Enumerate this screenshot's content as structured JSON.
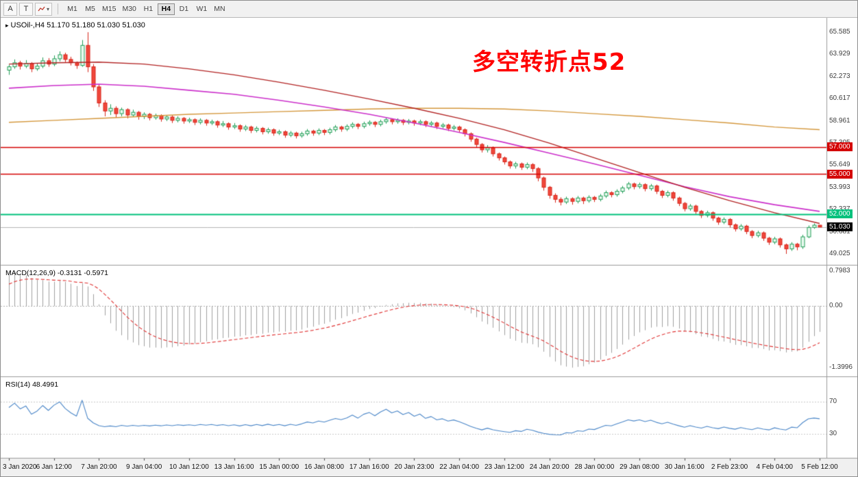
{
  "toolbar": {
    "tool_buttons": [
      {
        "label": "A"
      },
      {
        "label": "T"
      }
    ],
    "dropdown_arrow": "▾",
    "timeframes": [
      "M1",
      "M5",
      "M15",
      "M30",
      "H1",
      "H4",
      "D1",
      "W1",
      "MN"
    ],
    "active_timeframe": "H4"
  },
  "chart": {
    "type": "candlestick",
    "title_marker": "▸",
    "title": "USOil-,H4 51.170 51.180 51.030 51.030",
    "annotation": "多空转折点52",
    "y_ticks": [
      65.585,
      63.929,
      62.273,
      60.617,
      58.961,
      57.305,
      55.649,
      53.993,
      52.337,
      50.681,
      49.025
    ],
    "ylim": [
      48.31,
      66.66
    ],
    "hlines": [
      {
        "value": 57.0,
        "label": "57.000",
        "color_key": "hline_red",
        "width": 1.6
      },
      {
        "value": 55.0,
        "label": "55.000",
        "color_key": "hline_red",
        "width": 1.6
      },
      {
        "value": 52.0,
        "label": "52.000",
        "color_key": "hline_green",
        "width": 2.2
      }
    ],
    "current_price": {
      "value": 51.03,
      "label": "51.030"
    },
    "moving_averages": [
      {
        "name": "ma-slow",
        "color_key": "ma_slow",
        "step": 8,
        "width": 1.4,
        "values": [
          58.85,
          59.0,
          59.15,
          59.3,
          59.45,
          59.55,
          59.65,
          59.75,
          59.85,
          59.9,
          59.9,
          59.85,
          59.7,
          59.5,
          59.3,
          59.05,
          58.8,
          58.5,
          58.3
        ]
      },
      {
        "name": "ma-medium",
        "color_key": "ma_mid",
        "step": 8,
        "width": 1.6,
        "values": [
          61.4,
          61.6,
          61.7,
          61.55,
          61.25,
          60.95,
          60.5,
          60.0,
          59.45,
          58.8,
          58.1,
          57.35,
          56.55,
          55.75,
          54.9,
          54.05,
          53.3,
          52.7,
          52.2
        ]
      },
      {
        "name": "ma-fast",
        "color_key": "ma_fast",
        "step": 8,
        "width": 1.3,
        "values": [
          63.2,
          63.3,
          63.35,
          63.2,
          62.85,
          62.4,
          61.85,
          61.25,
          60.6,
          59.9,
          59.15,
          58.3,
          57.3,
          56.2,
          55.1,
          54.0,
          53.0,
          52.1,
          51.3
        ]
      }
    ],
    "candles": [
      [
        62.75,
        63.15,
        62.4,
        63.0
      ],
      [
        63.0,
        63.55,
        62.85,
        63.3
      ],
      [
        63.3,
        63.45,
        62.8,
        63.05
      ],
      [
        63.05,
        63.5,
        62.9,
        63.25
      ],
      [
        63.25,
        63.35,
        62.6,
        62.85
      ],
      [
        62.85,
        63.25,
        62.7,
        63.05
      ],
      [
        63.05,
        63.7,
        62.9,
        63.45
      ],
      [
        63.45,
        63.65,
        63.0,
        63.2
      ],
      [
        63.2,
        63.85,
        63.05,
        63.6
      ],
      [
        63.6,
        64.15,
        63.4,
        63.9
      ],
      [
        63.9,
        64.05,
        63.35,
        63.55
      ],
      [
        63.55,
        63.75,
        63.1,
        63.3
      ],
      [
        63.3,
        63.4,
        62.85,
        63.1
      ],
      [
        63.1,
        65.0,
        63.0,
        64.6
      ],
      [
        64.6,
        65.585,
        62.6,
        63.0
      ],
      [
        63.0,
        63.2,
        61.2,
        61.5
      ],
      [
        61.5,
        61.7,
        60.0,
        60.3
      ],
      [
        60.3,
        60.5,
        59.3,
        59.7
      ],
      [
        59.7,
        60.2,
        59.4,
        59.9
      ],
      [
        59.9,
        60.05,
        59.2,
        59.5
      ],
      [
        59.5,
        59.95,
        59.3,
        59.8
      ],
      [
        59.8,
        59.9,
        59.15,
        59.4
      ],
      [
        59.4,
        59.8,
        59.25,
        59.6
      ],
      [
        59.6,
        59.7,
        59.05,
        59.3
      ],
      [
        59.3,
        59.6,
        59.1,
        59.45
      ],
      [
        59.45,
        59.55,
        59.0,
        59.2
      ],
      [
        59.2,
        59.5,
        59.05,
        59.35
      ],
      [
        59.35,
        59.45,
        58.9,
        59.1
      ],
      [
        59.1,
        59.4,
        58.95,
        59.25
      ],
      [
        59.25,
        59.35,
        58.8,
        59.0
      ],
      [
        59.0,
        59.3,
        58.85,
        59.15
      ],
      [
        59.15,
        59.25,
        58.75,
        58.95
      ],
      [
        58.95,
        59.2,
        58.8,
        59.05
      ],
      [
        59.05,
        59.15,
        58.65,
        58.85
      ],
      [
        58.85,
        59.15,
        58.7,
        59.0
      ],
      [
        59.0,
        59.1,
        58.6,
        58.8
      ],
      [
        58.8,
        59.05,
        58.65,
        58.9
      ],
      [
        58.9,
        59.0,
        58.45,
        58.65
      ],
      [
        58.65,
        58.95,
        58.5,
        58.75
      ],
      [
        58.75,
        58.85,
        58.3,
        58.5
      ],
      [
        58.5,
        58.8,
        58.35,
        58.6
      ],
      [
        58.6,
        58.7,
        58.15,
        58.35
      ],
      [
        58.35,
        58.65,
        58.2,
        58.5
      ],
      [
        58.5,
        58.6,
        58.05,
        58.25
      ],
      [
        58.25,
        58.55,
        58.1,
        58.4
      ],
      [
        58.4,
        58.5,
        57.95,
        58.15
      ],
      [
        58.15,
        58.45,
        58.0,
        58.3
      ],
      [
        58.3,
        58.4,
        57.85,
        58.05
      ],
      [
        58.05,
        58.3,
        57.9,
        58.15
      ],
      [
        58.15,
        58.25,
        57.7,
        57.9
      ],
      [
        57.9,
        58.2,
        57.75,
        58.05
      ],
      [
        58.05,
        58.15,
        57.65,
        57.85
      ],
      [
        57.85,
        58.15,
        57.7,
        58.0
      ],
      [
        58.0,
        58.35,
        57.85,
        58.2
      ],
      [
        58.2,
        58.3,
        57.85,
        58.05
      ],
      [
        58.05,
        58.4,
        57.9,
        58.25
      ],
      [
        58.25,
        58.35,
        57.9,
        58.1
      ],
      [
        58.1,
        58.45,
        57.95,
        58.3
      ],
      [
        58.3,
        58.65,
        58.15,
        58.5
      ],
      [
        58.5,
        58.6,
        58.15,
        58.35
      ],
      [
        58.35,
        58.7,
        58.2,
        58.55
      ],
      [
        58.55,
        58.85,
        58.4,
        58.7
      ],
      [
        58.7,
        58.8,
        58.35,
        58.55
      ],
      [
        58.55,
        58.9,
        58.4,
        58.75
      ],
      [
        58.75,
        59.0,
        58.6,
        58.85
      ],
      [
        58.85,
        58.95,
        58.5,
        58.7
      ],
      [
        58.7,
        59.05,
        58.55,
        58.9
      ],
      [
        58.9,
        59.2,
        58.75,
        59.05
      ],
      [
        59.05,
        59.15,
        58.7,
        58.9
      ],
      [
        58.9,
        59.15,
        58.75,
        59.0
      ],
      [
        59.0,
        59.1,
        58.65,
        58.85
      ],
      [
        58.85,
        59.1,
        58.7,
        58.95
      ],
      [
        58.95,
        59.05,
        58.6,
        58.8
      ],
      [
        58.8,
        59.05,
        58.65,
        58.9
      ],
      [
        58.9,
        59.0,
        58.5,
        58.7
      ],
      [
        58.7,
        58.95,
        58.55,
        58.8
      ],
      [
        58.8,
        58.9,
        58.35,
        58.55
      ],
      [
        58.55,
        58.8,
        58.4,
        58.65
      ],
      [
        58.65,
        58.75,
        58.2,
        58.4
      ],
      [
        58.4,
        58.65,
        58.25,
        58.5
      ],
      [
        58.5,
        58.6,
        58.1,
        58.3
      ],
      [
        58.3,
        58.4,
        57.8,
        58.0
      ],
      [
        58.0,
        58.1,
        57.4,
        57.6
      ],
      [
        57.6,
        57.7,
        57.0,
        57.2
      ],
      [
        57.2,
        57.3,
        56.6,
        56.8
      ],
      [
        56.8,
        57.15,
        56.6,
        56.95
      ],
      [
        56.95,
        57.05,
        56.3,
        56.5
      ],
      [
        56.5,
        56.6,
        56.0,
        56.2
      ],
      [
        56.2,
        56.3,
        55.7,
        55.9
      ],
      [
        55.9,
        56.0,
        55.4,
        55.6
      ],
      [
        55.6,
        55.9,
        55.4,
        55.75
      ],
      [
        55.75,
        55.85,
        55.3,
        55.5
      ],
      [
        55.5,
        55.85,
        55.35,
        55.7
      ],
      [
        55.7,
        55.8,
        55.15,
        55.4
      ],
      [
        55.4,
        55.5,
        54.45,
        54.7
      ],
      [
        54.7,
        54.8,
        53.75,
        54.0
      ],
      [
        54.0,
        54.1,
        53.15,
        53.4
      ],
      [
        53.4,
        53.55,
        52.85,
        53.1
      ],
      [
        53.1,
        53.25,
        52.65,
        52.9
      ],
      [
        52.9,
        53.3,
        52.75,
        53.15
      ],
      [
        53.15,
        53.25,
        52.7,
        52.95
      ],
      [
        52.95,
        53.35,
        52.8,
        53.2
      ],
      [
        53.2,
        53.3,
        52.75,
        53.0
      ],
      [
        53.0,
        53.4,
        52.85,
        53.25
      ],
      [
        53.25,
        53.35,
        52.9,
        53.1
      ],
      [
        53.1,
        53.5,
        52.95,
        53.35
      ],
      [
        53.35,
        53.75,
        53.2,
        53.6
      ],
      [
        53.6,
        53.7,
        53.25,
        53.45
      ],
      [
        53.45,
        53.85,
        53.3,
        53.7
      ],
      [
        53.7,
        54.1,
        53.55,
        53.95
      ],
      [
        53.95,
        54.4,
        53.8,
        54.25
      ],
      [
        54.25,
        54.35,
        53.85,
        54.05
      ],
      [
        54.05,
        54.35,
        53.9,
        54.2
      ],
      [
        54.2,
        54.3,
        53.7,
        53.9
      ],
      [
        53.9,
        54.25,
        53.75,
        54.1
      ],
      [
        54.1,
        54.2,
        53.5,
        53.7
      ],
      [
        53.7,
        53.8,
        53.2,
        53.4
      ],
      [
        53.4,
        53.75,
        53.25,
        53.6
      ],
      [
        53.6,
        53.7,
        53.0,
        53.2
      ],
      [
        53.2,
        53.3,
        52.6,
        52.8
      ],
      [
        52.8,
        52.9,
        52.2,
        52.4
      ],
      [
        52.4,
        52.75,
        52.25,
        52.6
      ],
      [
        52.6,
        52.7,
        52.0,
        52.2
      ],
      [
        52.2,
        52.3,
        51.7,
        51.9
      ],
      [
        51.9,
        52.25,
        51.75,
        52.1
      ],
      [
        52.1,
        52.2,
        51.5,
        51.7
      ],
      [
        51.7,
        51.8,
        51.2,
        51.4
      ],
      [
        51.4,
        51.75,
        51.25,
        51.6
      ],
      [
        51.6,
        51.7,
        51.0,
        51.2
      ],
      [
        51.2,
        51.3,
        50.7,
        50.9
      ],
      [
        50.9,
        51.25,
        50.75,
        51.1
      ],
      [
        51.1,
        51.2,
        50.5,
        50.7
      ],
      [
        50.7,
        50.8,
        50.2,
        50.4
      ],
      [
        50.4,
        50.75,
        50.25,
        50.6
      ],
      [
        50.6,
        50.7,
        50.0,
        50.2
      ],
      [
        50.2,
        50.3,
        49.7,
        49.9
      ],
      [
        49.9,
        50.3,
        49.75,
        50.15
      ],
      [
        50.15,
        50.25,
        49.5,
        49.7
      ],
      [
        49.7,
        49.8,
        49.025,
        49.4
      ],
      [
        49.4,
        49.9,
        49.25,
        49.75
      ],
      [
        49.75,
        49.85,
        49.3,
        49.55
      ],
      [
        49.55,
        50.45,
        49.4,
        50.3
      ],
      [
        50.3,
        51.15,
        50.2,
        51.0
      ],
      [
        51.0,
        51.3,
        50.9,
        51.17
      ],
      [
        51.17,
        51.18,
        51.03,
        51.03
      ]
    ]
  },
  "macd": {
    "label": "MACD(12,26,9) -0.3131 -0.5971",
    "y_ticks": [
      {
        "value": 0.7983,
        "label": "0.7983"
      },
      {
        "value": 0,
        "label": "0.00"
      },
      {
        "value": -1.3996,
        "label": "-1.3996"
      }
    ],
    "ylim": [
      -1.567,
      0.89
    ],
    "range": [
      -1.3996,
      0.7983
    ],
    "params": [
      12,
      26,
      9
    ],
    "seeds": {
      "ema_fast": 62.8,
      "ema_slow": 61.9,
      "signal": 0.45
    }
  },
  "rsi": {
    "label": "RSI(14) 48.4991",
    "period": 14,
    "levels": [
      {
        "value": 70,
        "label": "70"
      },
      {
        "value": 30,
        "label": "30"
      }
    ],
    "ylim": [
      1.5,
      99
    ],
    "display_range": [
      29,
      72
    ]
  },
  "time_axis": {
    "label_step": 8,
    "labels": [
      "3 Jan 2020",
      "6 Jan 12:00",
      "7 Jan 20:00",
      "9 Jan 04:00",
      "10 Jan 12:00",
      "13 Jan 16:00",
      "15 Jan 00:00",
      "16 Jan 08:00",
      "17 Jan 16:00",
      "20 Jan 23:00",
      "22 Jan 04:00",
      "23 Jan 12:00",
      "24 Jan 20:00",
      "28 Jan 00:00",
      "29 Jan 08:00",
      "30 Jan 16:00",
      "2 Feb 23:00",
      "4 Feb 04:00",
      "5 Feb 12:00"
    ]
  },
  "colors": {
    "up_stroke": "#1f9d55",
    "up_fill": "#eafaf0",
    "down_stroke": "#d8251a",
    "down_fill": "#f0483c",
    "ma_fast": "#b22222",
    "ma_mid": "#cc2fcb",
    "ma_slow": "#d4973b",
    "hline_red": "#d40000",
    "hline_green": "#00c17c",
    "current_line": "#b3b3b3",
    "current_tag_bg": "#000000",
    "macd_hist": "#a0a0a0",
    "macd_signal": "#e03131",
    "rsi_line": "#4a86c8",
    "annotation": "#ff0000"
  }
}
